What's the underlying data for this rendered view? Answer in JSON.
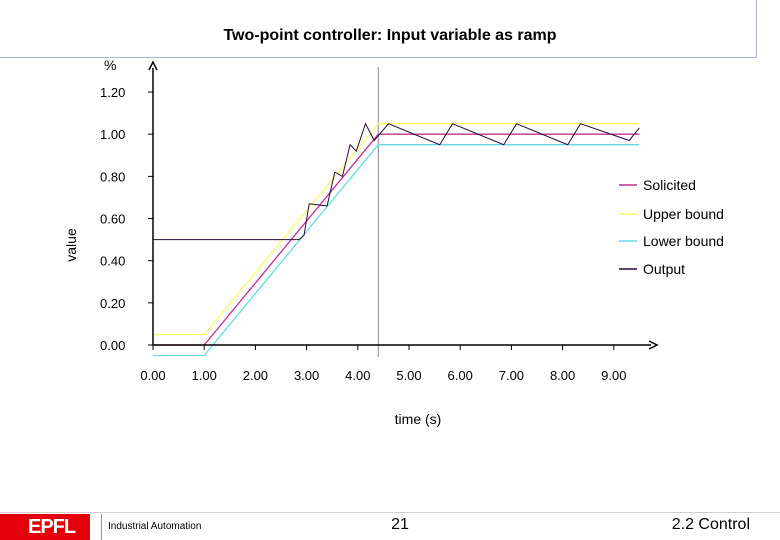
{
  "slide": {
    "title": "Two-point controller: Input variable as ramp",
    "footer_org": "Industrial Automation",
    "page_number": "21",
    "section": "2.2 Control",
    "logo_text": "EPFL"
  },
  "chart_data": {
    "type": "line",
    "title": "Two-point controller: Input variable as ramp",
    "ylabel": "value",
    "y_unit": "%",
    "xlabel": "time (s)",
    "xlim": [
      0,
      9.5
    ],
    "ylim": [
      0,
      1.3
    ],
    "x_ticks": [
      "0.00",
      "1.00",
      "2.00",
      "3.00",
      "4.00",
      "5.00",
      "6.00",
      "7.00",
      "8.00",
      "9.00"
    ],
    "y_ticks": [
      "0.00",
      "0.20",
      "0.40",
      "0.60",
      "0.80",
      "1.00",
      "1.20"
    ],
    "marker_line_x": 4.4,
    "legend_position": "right",
    "series": [
      {
        "name": "Solicited",
        "color": "#c03090",
        "x": [
          0.0,
          1.0,
          4.4,
          9.5
        ],
        "y": [
          0.0,
          0.0,
          1.0,
          1.0
        ]
      },
      {
        "name": "Upper bound",
        "color": "#ffff66",
        "x": [
          0.0,
          1.0,
          4.4,
          9.5
        ],
        "y": [
          0.05,
          0.05,
          1.05,
          1.05
        ]
      },
      {
        "name": "Lower bound",
        "color": "#66d9e8",
        "x": [
          0.0,
          1.0,
          4.4,
          9.5
        ],
        "y": [
          -0.05,
          -0.05,
          0.95,
          0.95
        ]
      },
      {
        "name": "Output",
        "color": "#2a0a3a",
        "x": [
          0.0,
          2.85,
          2.95,
          3.05,
          3.4,
          3.55,
          3.7,
          3.85,
          3.97,
          4.15,
          4.32,
          4.6,
          5.6,
          5.85,
          6.85,
          7.1,
          8.1,
          8.35,
          9.3,
          9.5
        ],
        "y": [
          0.5,
          0.5,
          0.52,
          0.67,
          0.66,
          0.82,
          0.8,
          0.95,
          0.92,
          1.05,
          0.97,
          1.05,
          0.95,
          1.05,
          0.95,
          1.05,
          0.95,
          1.05,
          0.97,
          1.03
        ]
      }
    ]
  }
}
